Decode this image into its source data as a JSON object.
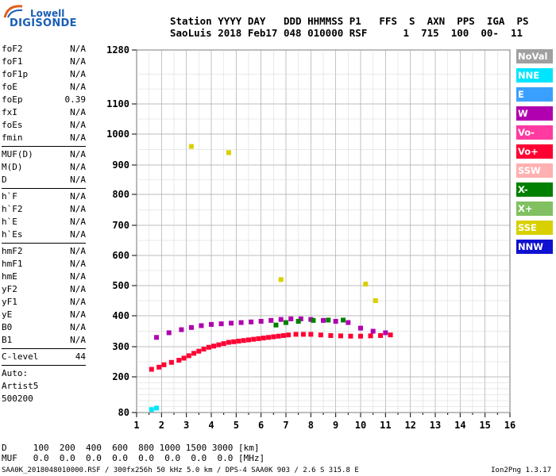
{
  "logo": {
    "top": "Lowell",
    "main": "DIGISONDE"
  },
  "header": {
    "labels": "Station YYYY DAY   DDD HHMMSS P1   FFS  S  AXN  PPS  IGA  PS",
    "values": "SaoLuis 2018 Feb17 048 010000 RSF      1  715  100  00-  11"
  },
  "params_group1": [
    {
      "name": "foF2",
      "value": "N/A"
    },
    {
      "name": "foF1",
      "value": "N/A"
    },
    {
      "name": "foF1p",
      "value": "N/A"
    },
    {
      "name": "foE",
      "value": "N/A"
    },
    {
      "name": "foEp",
      "value": "0.39"
    },
    {
      "name": "fxI",
      "value": "N/A"
    },
    {
      "name": "foEs",
      "value": "N/A"
    },
    {
      "name": "fmin",
      "value": "N/A"
    }
  ],
  "params_group2": [
    {
      "name": "MUF(D)",
      "value": "N/A"
    },
    {
      "name": "M(D)",
      "value": "N/A"
    },
    {
      "name": "D",
      "value": "N/A"
    }
  ],
  "params_group3": [
    {
      "name": "h`F",
      "value": "N/A"
    },
    {
      "name": "h`F2",
      "value": "N/A"
    },
    {
      "name": "h`E",
      "value": "N/A"
    },
    {
      "name": "h`Es",
      "value": "N/A"
    }
  ],
  "params_group4": [
    {
      "name": "hmF2",
      "value": "N/A"
    },
    {
      "name": "hmF1",
      "value": "N/A"
    },
    {
      "name": "hmE",
      "value": "N/A"
    },
    {
      "name": "yF2",
      "value": "N/A"
    },
    {
      "name": "yF1",
      "value": "N/A"
    },
    {
      "name": "yE",
      "value": "N/A"
    },
    {
      "name": "B0",
      "value": "N/A"
    },
    {
      "name": "B1",
      "value": "N/A"
    }
  ],
  "clevel": {
    "name": "C-level",
    "value": "44"
  },
  "auto": [
    "Auto:",
    "Artist5",
    "500200"
  ],
  "legend": [
    {
      "label": "NoVal",
      "color": "#a0a0a0"
    },
    {
      "label": "NNE",
      "color": "#00e5ff"
    },
    {
      "label": "E",
      "color": "#3aa0ff"
    },
    {
      "label": "W",
      "color": "#b000b0"
    },
    {
      "label": "Vo-",
      "color": "#ff3aa0"
    },
    {
      "label": "Vo+",
      "color": "#ff0033"
    },
    {
      "label": "SSW",
      "color": "#ffb0b0"
    },
    {
      "label": "X-",
      "color": "#008000"
    },
    {
      "label": "X+",
      "color": "#80c060"
    },
    {
      "label": "SSE",
      "color": "#d8d000"
    },
    {
      "label": "NNW",
      "color": "#1010d0"
    }
  ],
  "footer": {
    "d_row": "D     100  200  400  600  800 1000 1500 3000 [km]",
    "muf_row": "MUF   0.0  0.0  0.0  0.0  0.0  0.0  0.0  0.0 [MHz]",
    "file": "SAA0K_2018048010000.RSF / 300fx256h 50 kHz 5.0 km / DPS-4 SAA0K 903 / 2.6 S 315.8 E",
    "version": "Ion2Png 1.3.17"
  },
  "chart_data": {
    "type": "scatter",
    "title": "",
    "xlabel": "",
    "ylabel": "",
    "x_ticks": [
      1,
      2,
      3,
      4,
      5,
      6,
      7,
      8,
      9,
      10,
      11,
      12,
      13,
      14,
      15,
      16
    ],
    "y_ticks": [
      80,
      200,
      300,
      400,
      500,
      600,
      700,
      800,
      900,
      1000,
      1100,
      1280
    ],
    "xlim": [
      1,
      16
    ],
    "ylim": [
      80,
      1280
    ],
    "y_scale": "log-like (ionogram virtual height)",
    "grid": true,
    "series": [
      {
        "label": "Vo+",
        "x": [
          1.6,
          1.9,
          2.1,
          2.4,
          2.7,
          2.9,
          3.1,
          3.3,
          3.5,
          3.7,
          3.9,
          4.1,
          4.3,
          4.5,
          4.7,
          4.9,
          5.1,
          5.3,
          5.5,
          5.7,
          5.9,
          6.1,
          6.3,
          6.5,
          6.7,
          6.9,
          7.1,
          7.4,
          7.7,
          8.0,
          8.4,
          8.8,
          9.2,
          9.6,
          10.0,
          10.4,
          10.8,
          11.2
        ],
        "y": [
          225,
          232,
          240,
          248,
          255,
          262,
          270,
          278,
          285,
          292,
          298,
          302,
          306,
          310,
          314,
          316,
          318,
          320,
          322,
          324,
          326,
          328,
          330,
          332,
          334,
          336,
          338,
          340,
          340,
          340,
          338,
          336,
          335,
          334,
          334,
          335,
          336,
          338
        ]
      },
      {
        "label": "W",
        "x": [
          1.8,
          2.3,
          2.8,
          3.2,
          3.6,
          4.0,
          4.4,
          4.8,
          5.2,
          5.6,
          6.0,
          6.4,
          6.8,
          7.2,
          7.6,
          8.0,
          8.5,
          9.0,
          9.5,
          10.0,
          10.5,
          11.0
        ],
        "y": [
          330,
          345,
          355,
          362,
          368,
          372,
          374,
          376,
          378,
          380,
          382,
          385,
          388,
          390,
          390,
          388,
          385,
          382,
          378,
          360,
          350,
          345
        ]
      },
      {
        "label": "X-",
        "x": [
          6.6,
          7.0,
          7.5,
          8.1,
          8.7,
          9.3
        ],
        "y": [
          370,
          378,
          382,
          385,
          386,
          386
        ]
      },
      {
        "label": "SSE",
        "x": [
          3.2,
          4.7,
          6.8,
          10.2,
          10.6
        ],
        "y": [
          960,
          940,
          520,
          505,
          450
        ]
      },
      {
        "label": "NNE",
        "x": [
          1.6,
          1.8
        ],
        "y": [
          90,
          95
        ]
      }
    ]
  }
}
